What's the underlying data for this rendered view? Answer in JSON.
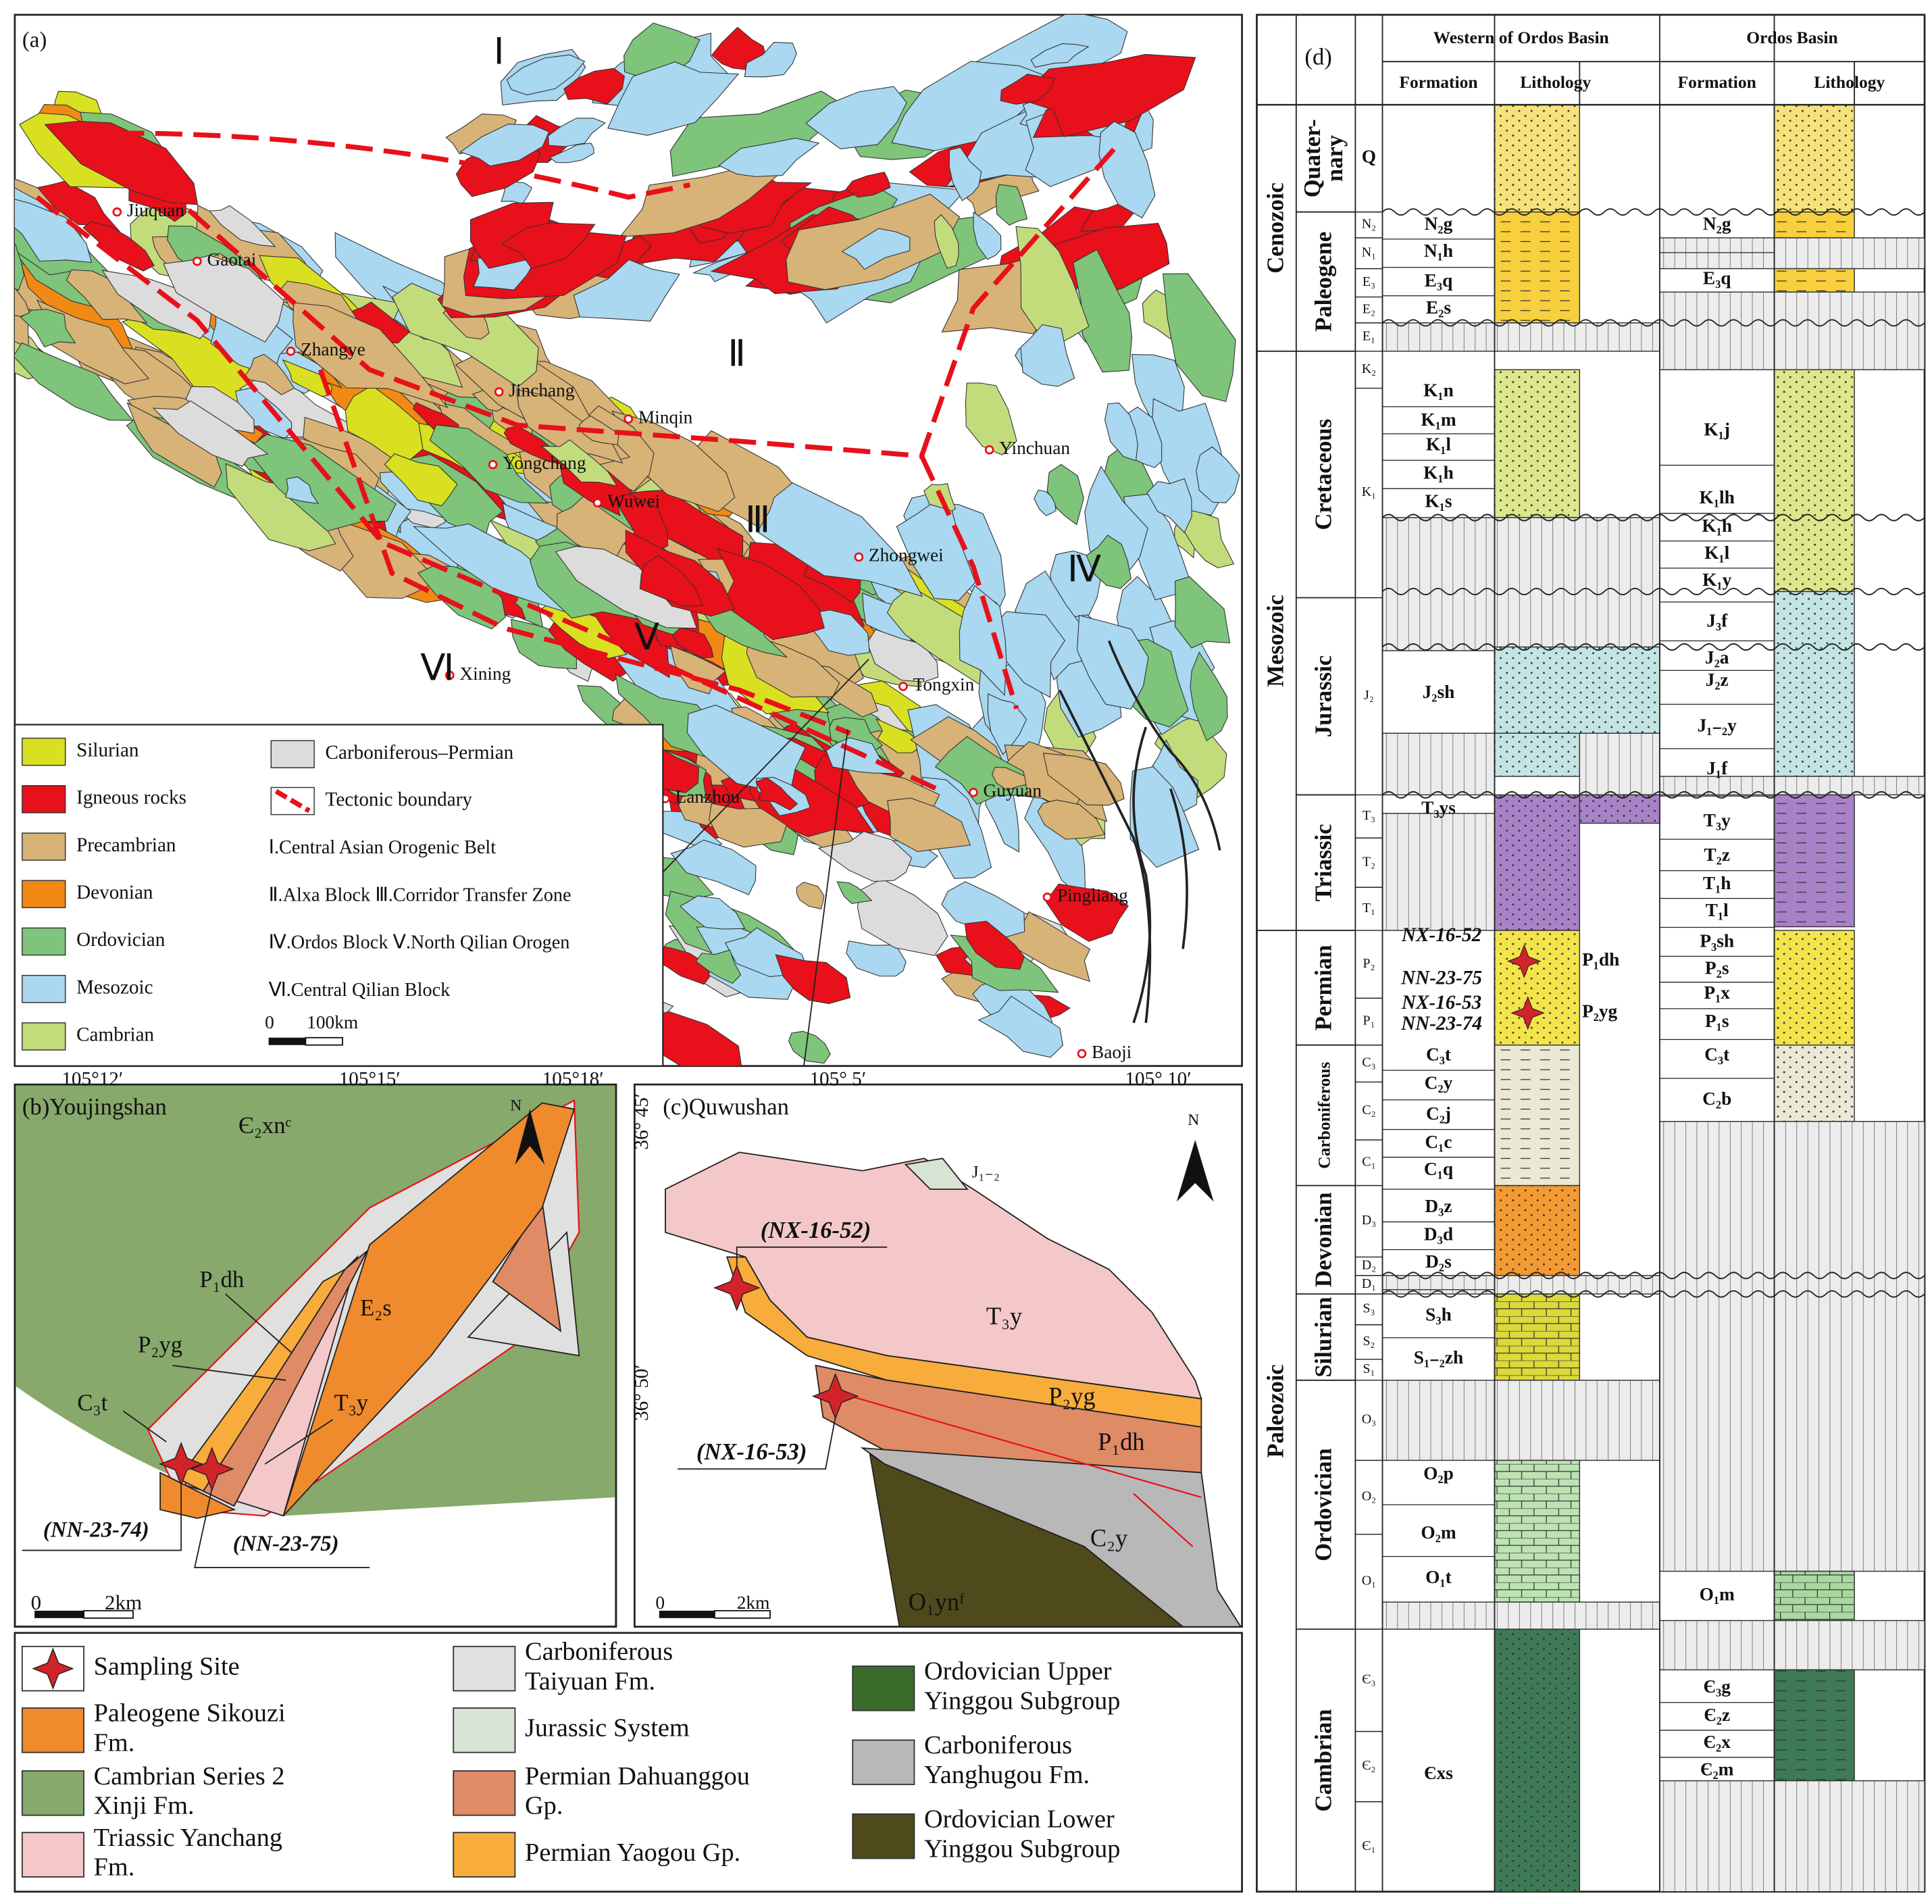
{
  "panel_a": {
    "label": "(a)",
    "regions": [
      "Ⅰ",
      "Ⅱ",
      "Ⅲ",
      "Ⅳ",
      "Ⅴ",
      "Ⅵ"
    ],
    "cities": [
      "Jiuquan",
      "Gaotai",
      "Zhangye",
      "Jinchang",
      "Minqin",
      "Yongchang",
      "Wuwei",
      "Zhongwei",
      "Yinchuan",
      "Xining",
      "Tongxin",
      "Lanzhou",
      "Guyuan",
      "Pingliang",
      "Baoji"
    ],
    "legend": [
      {
        "label": "Silurian",
        "color": "#d9e021"
      },
      {
        "label": "Igneous rocks",
        "color": "#e8101a"
      },
      {
        "label": "Precambrian",
        "color": "#d7b377"
      },
      {
        "label": "Devonian",
        "color": "#f08a14"
      },
      {
        "label": "Ordovician",
        "color": "#7ec47a"
      },
      {
        "label": "Mesozoic",
        "color": "#a9d8f0"
      },
      {
        "label": "Cambrian",
        "color": "#c2dc7c"
      },
      {
        "label": "Carboniferous–Permian",
        "color": "#dcdcdc"
      },
      {
        "label": "Tectonic boundary",
        "color": "#e8101a"
      }
    ],
    "notes": [
      "Ⅰ.Central Asian Orogenic Belt",
      "Ⅱ.Alxa Block Ⅲ.Corridor Transfer Zone",
      "Ⅳ.Ordos Block Ⅴ.North Qilian Orogen",
      "Ⅵ.Central Qilian Block"
    ],
    "scale": [
      "0",
      "100km"
    ]
  },
  "panel_b": {
    "label": "(b)Youjingshan",
    "coords": [
      "105°12′",
      "105°15′",
      "105°18′"
    ],
    "units": [
      "Є₂xnᶜ",
      "P₁dh",
      "P₂yg",
      "E₂s",
      "C₃t",
      "T₃y"
    ],
    "samples": [
      "(NN-23-74)",
      "(NN-23-75)"
    ],
    "north": "N",
    "scale": [
      "0",
      "2km"
    ]
  },
  "panel_c": {
    "label": "(c)Quwushan",
    "coords": [
      "105° 5′",
      "105° 10′",
      "36° 45′",
      "36° 50′"
    ],
    "units": [
      "J₁₋₂",
      "T₃y",
      "P₂yg",
      "P₁dh",
      "C₂y",
      "O₁ynᶠ"
    ],
    "samples": [
      "(NX-16-52)",
      "(NX-16-53)"
    ],
    "north": "N",
    "scale": [
      "0",
      "2km"
    ]
  },
  "legend": [
    {
      "lines": [
        "Sampling Site"
      ],
      "color": "#d2232a"
    },
    {
      "lines": [
        "Paleogene Sikouzi",
        "Fm."
      ],
      "color": "#ef8b2c"
    },
    {
      "lines": [
        "Cambrian Series 2",
        "Xinji Fm."
      ],
      "color": "#87a96b"
    },
    {
      "lines": [
        "Triassic Yanchang",
        "Fm."
      ],
      "color": "#f4c8c8"
    },
    {
      "lines": [
        "Carboniferous",
        "Taiyuan Fm."
      ],
      "color": "#e0e0e0"
    },
    {
      "lines": [
        "Jurassic System"
      ],
      "color": "#d7e3d3"
    },
    {
      "lines": [
        "Permian Dahuanggou",
        "Gp."
      ],
      "color": "#df8b66"
    },
    {
      "lines": [
        "Permian Yaogou Gp."
      ],
      "color": "#f7ac3b"
    },
    {
      "lines": [
        "Ordovician Upper",
        "Yinggou Subgroup"
      ],
      "color": "#3a6b2a"
    },
    {
      "lines": [
        "Carboniferous",
        "Yanghugou Fm."
      ],
      "color": "#b8b8b8"
    },
    {
      "lines": [
        "Ordovician Lower",
        "Yinggou Subgroup"
      ],
      "color": "#4f4a1c"
    }
  ],
  "panel_d": {
    "label": "(d)",
    "columns": [
      "Western of Ordos Basin",
      "Ordos Basin"
    ],
    "subheaders": [
      "Formation",
      "Lithology",
      "Formation",
      "Lithology"
    ],
    "eras": [
      "Cenozoic",
      "Mesozoic",
      "Paleozoic"
    ],
    "periods": [
      [
        "Quater-",
        "nary"
      ],
      [
        "Paleogene"
      ],
      [
        "Cretaceous"
      ],
      [
        "Jurassic"
      ],
      [
        "Triassic"
      ],
      [
        "Permian"
      ],
      [
        "Carboniferous"
      ],
      [
        "Devonian"
      ],
      [
        "Silurian"
      ],
      [
        "Ordovician"
      ],
      [
        "Cambrian"
      ]
    ],
    "epochs": [
      "Q",
      "N₂",
      "N₁",
      "E₃",
      "E₂",
      "E₁",
      "K₂",
      "K₁",
      "J₂",
      "T₃",
      "T₂",
      "T₁",
      "P₂",
      "P₁",
      "C₃",
      "C₂",
      "C₁",
      "D₃",
      "D₂",
      "D₁",
      "S₃",
      "S₂",
      "S₁",
      "O₃",
      "O₂",
      "O₁",
      "Є₃",
      "Є₂",
      "Є₁"
    ],
    "western": [
      "N₂g",
      "N₁h",
      "E₃q",
      "E₂s",
      "K₁n",
      "K₁m",
      "K₁l",
      "K₁h",
      "K₁s",
      "J₂sh",
      "T₃ys",
      "C₃t",
      "C₂y",
      "C₂j",
      "C₁c",
      "C₁q",
      "D₃z",
      "D₃d",
      "D₂s",
      "S₃h",
      "S₁₋₂zh",
      "O₂p",
      "O₂m",
      "O₁t",
      "Єxs"
    ],
    "ordos": [
      "N₂g",
      "E₃q",
      "K₁j",
      "K₁lh",
      "K₁h",
      "K₁l",
      "K₁y",
      "J₃f",
      "J₂a",
      "J₂z",
      "J₁₋₂y",
      "J₁f",
      "T₃y",
      "T₂z",
      "T₁h",
      "T₁l",
      "P₃sh",
      "P₂s",
      "P₁x",
      "P₁s",
      "C₃t",
      "C₂b",
      "O₁m",
      "Є₃g",
      "Є₂z",
      "Є₂x",
      "Є₂m"
    ],
    "samples": [
      "NX-16-52",
      "NN-23-75",
      "NX-16-53",
      "NN-23-74"
    ],
    "sample_units": [
      "P₁dh",
      "P₂yg"
    ]
  }
}
